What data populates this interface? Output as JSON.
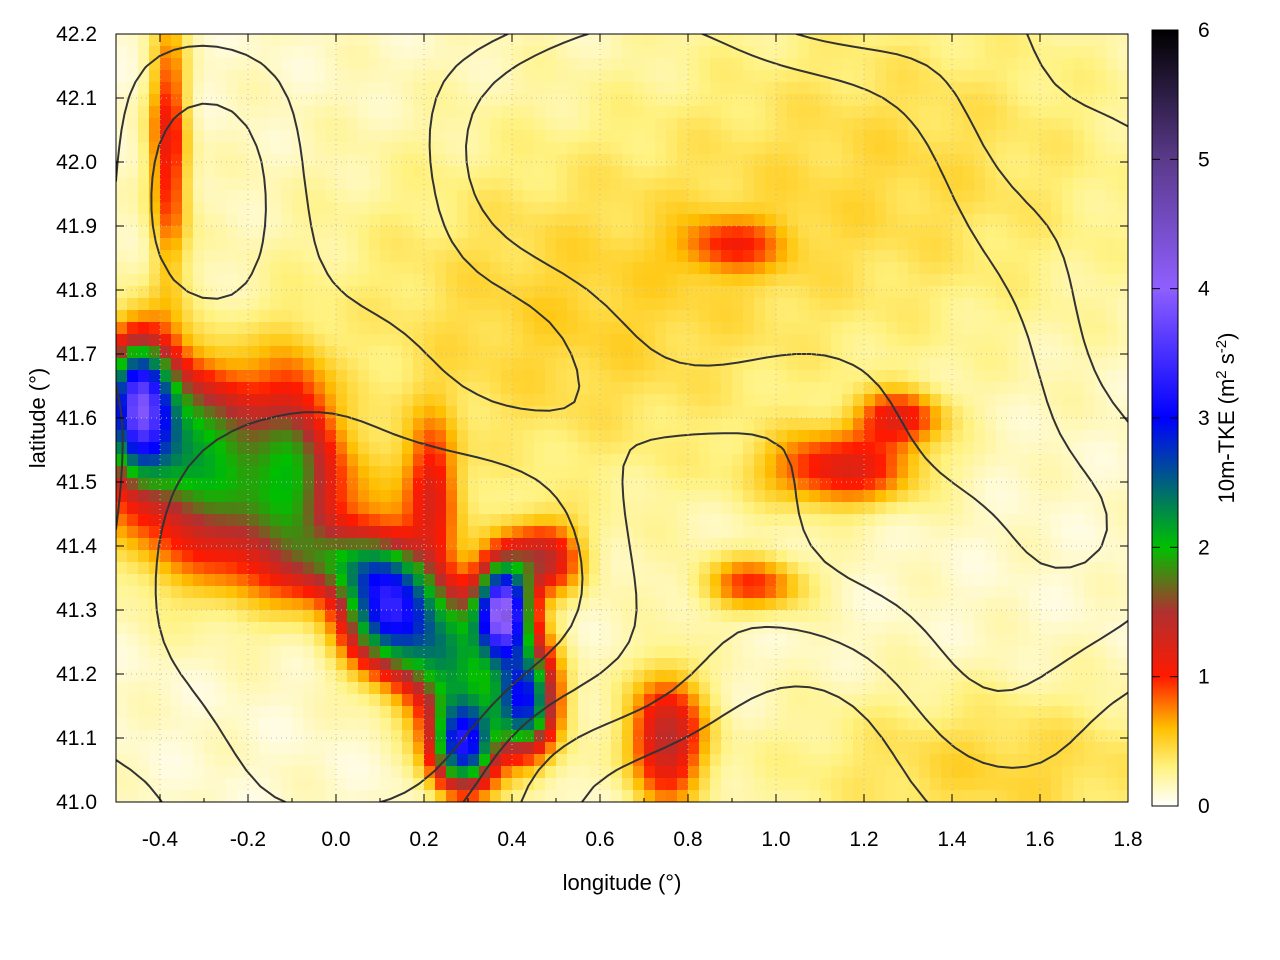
{
  "chart_data": {
    "type": "heatmap",
    "title": "",
    "xlabel": "longitude (°)",
    "ylabel": "latitude (°)",
    "xlim": [
      -0.5,
      1.8
    ],
    "ylim": [
      41.0,
      42.2
    ],
    "xticks": [
      -0.4,
      -0.2,
      0.0,
      0.2,
      0.4,
      0.6,
      0.8,
      1.0,
      1.2,
      1.4,
      1.6,
      1.8
    ],
    "yticks": [
      41.0,
      41.1,
      41.2,
      41.3,
      41.4,
      41.5,
      41.6,
      41.7,
      41.8,
      41.9,
      42.0,
      42.1,
      42.2
    ],
    "xtick_labels": [
      "-0.4",
      "-0.2",
      "0.0",
      "0.2",
      "0.4",
      "0.6",
      "0.8",
      "1.0",
      "1.2",
      "1.4",
      "1.6",
      "1.8"
    ],
    "ytick_labels": [
      "41.0",
      "41.1",
      "41.2",
      "41.3",
      "41.4",
      "41.5",
      "41.6",
      "41.7",
      "41.8",
      "41.9",
      "42.0",
      "42.1",
      "42.2"
    ],
    "grid": true,
    "colorbar": {
      "label": "10m-TKE (m",
      "label_sup1": "2",
      "label_mid": " s",
      "label_sup2": "-2",
      "label_end": ")",
      "range": [
        0,
        6
      ],
      "ticks": [
        0,
        1,
        2,
        3,
        4,
        5,
        6
      ],
      "tick_labels": [
        "0",
        "1",
        "2",
        "3",
        "4",
        "5",
        "6"
      ],
      "colormap": [
        {
          "value": 0.0,
          "color": "#ffffff"
        },
        {
          "value": 0.3,
          "color": "#fff280"
        },
        {
          "value": 0.6,
          "color": "#ffc000"
        },
        {
          "value": 1.0,
          "color": "#ff1a00"
        },
        {
          "value": 1.5,
          "color": "#b03030"
        },
        {
          "value": 2.0,
          "color": "#00c000"
        },
        {
          "value": 3.0,
          "color": "#0000ff"
        },
        {
          "value": 4.0,
          "color": "#8f5fff"
        },
        {
          "value": 5.0,
          "color": "#5a3a8a"
        },
        {
          "value": 6.0,
          "color": "#000000"
        }
      ]
    },
    "tke_features": [
      {
        "lon": -0.45,
        "lat": 41.63,
        "value": 2.6,
        "slon": 0.05,
        "slat": 0.07
      },
      {
        "lon": -0.36,
        "lat": 41.58,
        "value": 1.6,
        "slon": 0.12,
        "slat": 0.08
      },
      {
        "lon": -0.2,
        "lat": 41.46,
        "value": 1.3,
        "slon": 0.18,
        "slat": 0.09
      },
      {
        "lon": -0.1,
        "lat": 41.56,
        "value": 0.9,
        "slon": 0.06,
        "slat": 0.1
      },
      {
        "lon": 0.12,
        "lat": 41.3,
        "value": 2.8,
        "slon": 0.07,
        "slat": 0.06
      },
      {
        "lon": 0.26,
        "lat": 41.23,
        "value": 1.9,
        "slon": 0.08,
        "slat": 0.07
      },
      {
        "lon": 0.29,
        "lat": 41.09,
        "value": 2.9,
        "slon": 0.05,
        "slat": 0.05
      },
      {
        "lon": 0.43,
        "lat": 41.16,
        "value": 2.7,
        "slon": 0.05,
        "slat": 0.06
      },
      {
        "lon": 0.38,
        "lat": 41.3,
        "value": 3.6,
        "slon": 0.04,
        "slat": 0.05
      },
      {
        "lon": 0.47,
        "lat": 41.38,
        "value": 1.2,
        "slon": 0.06,
        "slat": 0.04
      },
      {
        "lon": 0.22,
        "lat": 41.48,
        "value": 0.9,
        "slon": 0.04,
        "slat": 0.08
      },
      {
        "lon": 0.02,
        "lat": 41.37,
        "value": 1.1,
        "slon": 0.1,
        "slat": 0.04
      },
      {
        "lon": -0.38,
        "lat": 42.02,
        "value": 1.0,
        "slon": 0.03,
        "slat": 0.14
      },
      {
        "lon": 0.75,
        "lat": 41.1,
        "value": 1.3,
        "slon": 0.06,
        "slat": 0.07
      },
      {
        "lon": 1.15,
        "lat": 41.52,
        "value": 1.0,
        "slon": 0.12,
        "slat": 0.04
      },
      {
        "lon": 1.28,
        "lat": 41.6,
        "value": 0.9,
        "slon": 0.07,
        "slat": 0.03
      },
      {
        "lon": 0.95,
        "lat": 41.34,
        "value": 0.8,
        "slon": 0.08,
        "slat": 0.03
      },
      {
        "lon": 0.9,
        "lat": 41.87,
        "value": 0.6,
        "slon": 0.08,
        "slat": 0.03
      },
      {
        "lon": 1.5,
        "lat": 41.05,
        "value": 0.35,
        "slon": 0.35,
        "slat": 0.09
      },
      {
        "lon": 0.5,
        "lat": 41.75,
        "value": 0.35,
        "slon": 0.4,
        "slat": 0.2
      },
      {
        "lon": 1.3,
        "lat": 42.0,
        "value": 0.3,
        "slon": 0.4,
        "slat": 0.2
      }
    ],
    "contour_features": [
      {
        "lon": 0.1,
        "lat": 41.25,
        "amp": 1.0,
        "slon": 0.45,
        "slat": 0.28
      },
      {
        "lon": 1.05,
        "lat": 41.92,
        "amp": 0.9,
        "slon": 0.35,
        "slat": 0.2
      },
      {
        "lon": 0.55,
        "lat": 42.05,
        "amp": 0.7,
        "slon": 0.25,
        "slat": 0.15
      },
      {
        "lon": 1.55,
        "lat": 41.45,
        "amp": 0.6,
        "slon": 0.3,
        "slat": 0.25
      },
      {
        "lon": -0.3,
        "lat": 41.95,
        "amp": 0.6,
        "slon": 0.2,
        "slat": 0.25
      },
      {
        "lon": 0.75,
        "lat": 41.0,
        "amp": -0.5,
        "slon": 0.4,
        "slat": 0.15
      }
    ],
    "contour_levels": [
      0.3,
      0.5,
      0.7,
      0.9
    ]
  }
}
